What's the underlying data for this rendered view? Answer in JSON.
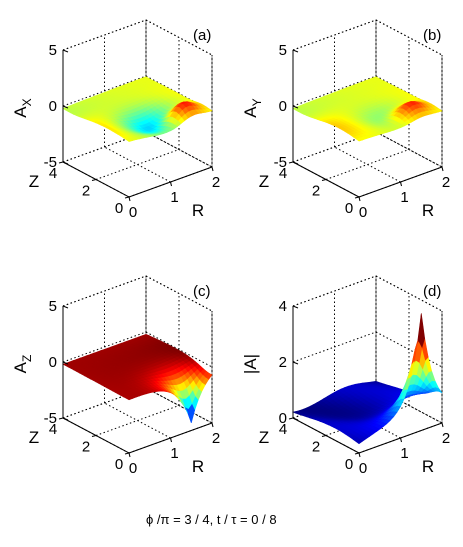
{
  "chart_data": [
    {
      "type": "surface",
      "panel": "(a)",
      "zlabel": "A_X",
      "zlabel_main": "A",
      "zlabel_sub": "X",
      "xlabel": "R",
      "ylabel": "Z",
      "r_ticks": [
        "0",
        "1",
        "2"
      ],
      "z_ticks": [
        "0",
        "2",
        "4"
      ],
      "v_ticks": [
        "-5",
        "0",
        "5"
      ],
      "r_range": [
        0,
        2
      ],
      "z_range": [
        0,
        4
      ],
      "value_range": [
        -5,
        5
      ],
      "grid": true,
      "colormap": "jet",
      "surface": {
        "baseline": 0.0,
        "peak_R": 1.5,
        "peak_Z": 0.6,
        "peak_value": 1.4,
        "dip_R": 1.0,
        "dip_Z": 1.1,
        "dip_value": -1.3
      }
    },
    {
      "type": "surface",
      "panel": "(b)",
      "zlabel": "A_Y",
      "zlabel_main": "A",
      "zlabel_sub": "Y",
      "xlabel": "R",
      "ylabel": "Z",
      "r_ticks": [
        "0",
        "1",
        "2"
      ],
      "z_ticks": [
        "0",
        "2",
        "4"
      ],
      "v_ticks": [
        "-5",
        "0",
        "5"
      ],
      "r_range": [
        0,
        2
      ],
      "z_range": [
        0,
        4
      ],
      "value_range": [
        -5,
        5
      ],
      "grid": true,
      "colormap": "jet",
      "surface": {
        "baseline": 0.0,
        "peak_R": 1.5,
        "peak_Z": 0.7,
        "peak_value": 1.1,
        "dip_R": 1.1,
        "dip_Z": 1.2,
        "dip_value": -0.6
      }
    },
    {
      "type": "surface",
      "panel": "(c)",
      "zlabel": "A_Z",
      "zlabel_main": "A",
      "zlabel_sub": "Z",
      "xlabel": "R",
      "ylabel": "Z",
      "r_ticks": [
        "0",
        "1",
        "2"
      ],
      "z_ticks": [
        "0",
        "2",
        "4"
      ],
      "v_ticks": [
        "-5",
        "0",
        "5"
      ],
      "r_range": [
        0,
        2
      ],
      "z_range": [
        0,
        4
      ],
      "value_range": [
        -5,
        5
      ],
      "grid": true,
      "colormap": "jet",
      "surface": {
        "baseline": 0.0,
        "peak_R": 1.5,
        "peak_Z": 0.0,
        "peak_value": -4.5,
        "dip_R": 1.5,
        "dip_Z": 0.0,
        "dip_value": -4.5
      }
    },
    {
      "type": "surface",
      "panel": "(d)",
      "zlabel": "|A|",
      "zlabel_main": "|A|",
      "zlabel_sub": "",
      "xlabel": "R",
      "ylabel": "Z",
      "r_ticks": [
        "0",
        "1",
        "2"
      ],
      "z_ticks": [
        "0",
        "2",
        "4"
      ],
      "v_ticks": [
        "0",
        "2",
        "4"
      ],
      "r_range": [
        0,
        2
      ],
      "z_range": [
        0,
        4
      ],
      "value_range": [
        0,
        4
      ],
      "grid": true,
      "colormap": "jet",
      "surface": {
        "baseline": 0.3,
        "peak_R": 1.5,
        "peak_Z": 0.0,
        "peak_value": 4.3,
        "dip_R": 0.0,
        "dip_Z": 4.0,
        "dip_value": 0.2
      }
    }
  ],
  "caption": {
    "phi": "ϕ",
    "slash1": "/",
    "pi": "π",
    "eq1": "= 3 / 4, t",
    "slash2": "/",
    "tau": "τ",
    "eq2": "= 0 / 8"
  }
}
